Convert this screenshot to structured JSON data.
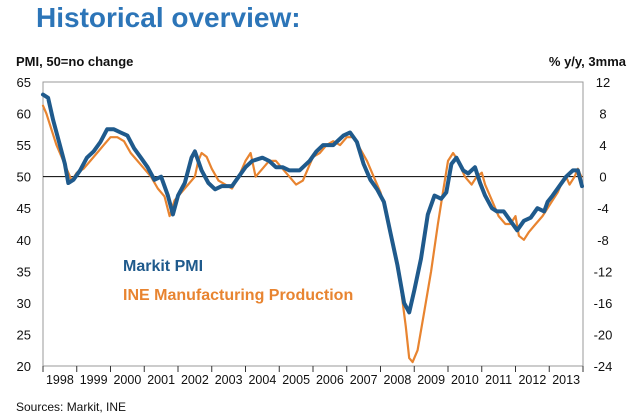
{
  "page": {
    "title": "Historical overview:",
    "source": "Sources: Markit, INE"
  },
  "colors": {
    "pmi": "#1F5A8C",
    "ine": "#E88430",
    "title": "#2C75B8",
    "zero_line": "#000000",
    "frame": "#999999"
  },
  "chart_data": {
    "type": "line",
    "title": "Historical overview:",
    "ylabel_left": "PMI, 50=no change",
    "ylabel_right": "% y/y, 3mma",
    "ylim_left": [
      20,
      65
    ],
    "ylim_right": [
      -24,
      12
    ],
    "yticks_left": [
      20,
      25,
      30,
      35,
      40,
      45,
      50,
      55,
      60,
      65
    ],
    "yticks_right": [
      -24,
      -20,
      -16,
      -12,
      -8,
      -4,
      0,
      4,
      8,
      12
    ],
    "xlim": [
      1998,
      2014
    ],
    "years": [
      "1998",
      "1999",
      "2000",
      "2001",
      "2002",
      "2003",
      "2004",
      "2005",
      "2006",
      "2007",
      "2008",
      "2009",
      "2010",
      "2011",
      "2012",
      "2013"
    ],
    "series": [
      {
        "name": "Markit PMI",
        "axis": "left",
        "points": [
          [
            1998.0,
            63
          ],
          [
            1998.15,
            62.5
          ],
          [
            1998.3,
            59
          ],
          [
            1998.5,
            55
          ],
          [
            1998.65,
            52
          ],
          [
            1998.75,
            49
          ],
          [
            1998.9,
            49.5
          ],
          [
            1999.1,
            51
          ],
          [
            1999.3,
            53
          ],
          [
            1999.5,
            54
          ],
          [
            1999.7,
            55.5
          ],
          [
            1999.9,
            57.5
          ],
          [
            2000.1,
            57.5
          ],
          [
            2000.3,
            57
          ],
          [
            2000.5,
            56.5
          ],
          [
            2000.7,
            54.5
          ],
          [
            2000.9,
            53
          ],
          [
            2001.1,
            51.5
          ],
          [
            2001.3,
            49.5
          ],
          [
            2001.5,
            50
          ],
          [
            2001.7,
            47
          ],
          [
            2001.85,
            44
          ],
          [
            2002.0,
            47
          ],
          [
            2002.2,
            49
          ],
          [
            2002.4,
            53
          ],
          [
            2002.5,
            54
          ],
          [
            2002.7,
            51
          ],
          [
            2002.9,
            49
          ],
          [
            2003.1,
            48
          ],
          [
            2003.3,
            48.5
          ],
          [
            2003.6,
            48.5
          ],
          [
            2003.8,
            50
          ],
          [
            2004.0,
            51.5
          ],
          [
            2004.2,
            52.5
          ],
          [
            2004.5,
            53
          ],
          [
            2004.7,
            52.5
          ],
          [
            2004.9,
            51.5
          ],
          [
            2005.1,
            51.5
          ],
          [
            2005.3,
            51
          ],
          [
            2005.6,
            51
          ],
          [
            2005.9,
            52.5
          ],
          [
            2006.1,
            54
          ],
          [
            2006.3,
            55
          ],
          [
            2006.6,
            55
          ],
          [
            2006.9,
            56.5
          ],
          [
            2007.1,
            57
          ],
          [
            2007.3,
            55.5
          ],
          [
            2007.5,
            52
          ],
          [
            2007.7,
            49.5
          ],
          [
            2007.9,
            48
          ],
          [
            2008.1,
            46
          ],
          [
            2008.3,
            41
          ],
          [
            2008.5,
            36
          ],
          [
            2008.7,
            30
          ],
          [
            2008.85,
            28.5
          ],
          [
            2009.0,
            32
          ],
          [
            2009.2,
            37
          ],
          [
            2009.4,
            44
          ],
          [
            2009.6,
            47
          ],
          [
            2009.8,
            46.5
          ],
          [
            2009.95,
            47.5
          ],
          [
            2010.1,
            52
          ],
          [
            2010.25,
            53
          ],
          [
            2010.45,
            51
          ],
          [
            2010.6,
            50.5
          ],
          [
            2010.8,
            51.5
          ],
          [
            2010.95,
            49
          ],
          [
            2011.1,
            47
          ],
          [
            2011.3,
            45
          ],
          [
            2011.45,
            44.5
          ],
          [
            2011.65,
            44.5
          ],
          [
            2011.85,
            43
          ],
          [
            2012.05,
            41.5
          ],
          [
            2012.25,
            43
          ],
          [
            2012.45,
            43.5
          ],
          [
            2012.65,
            45
          ],
          [
            2012.85,
            44.5
          ],
          [
            2012.95,
            46
          ],
          [
            2013.1,
            47
          ],
          [
            2013.3,
            48.5
          ],
          [
            2013.5,
            50
          ],
          [
            2013.7,
            51
          ],
          [
            2013.85,
            51
          ],
          [
            2013.97,
            48.5
          ]
        ]
      },
      {
        "name": "INE Manufacturing Production",
        "axis": "right",
        "points": [
          [
            1998.0,
            9
          ],
          [
            1998.1,
            8
          ],
          [
            1998.25,
            6
          ],
          [
            1998.4,
            4
          ],
          [
            1998.55,
            2.5
          ],
          [
            1998.7,
            1
          ],
          [
            1998.85,
            -0.5
          ],
          [
            1999.0,
            0.5
          ],
          [
            1999.2,
            1
          ],
          [
            1999.4,
            2
          ],
          [
            1999.6,
            3
          ],
          [
            1999.8,
            4
          ],
          [
            2000.0,
            5
          ],
          [
            2000.2,
            5
          ],
          [
            2000.4,
            4.5
          ],
          [
            2000.6,
            3
          ],
          [
            2000.8,
            2
          ],
          [
            2001.0,
            1
          ],
          [
            2001.2,
            0
          ],
          [
            2001.4,
            -1.5
          ],
          [
            2001.6,
            -2.5
          ],
          [
            2001.75,
            -5
          ],
          [
            2001.9,
            -3
          ],
          [
            2002.1,
            -2
          ],
          [
            2002.3,
            -1
          ],
          [
            2002.5,
            0
          ],
          [
            2002.6,
            2
          ],
          [
            2002.7,
            3
          ],
          [
            2002.85,
            2.5
          ],
          [
            2003.0,
            1
          ],
          [
            2003.2,
            -0.5
          ],
          [
            2003.4,
            -1
          ],
          [
            2003.6,
            -1.5
          ],
          [
            2003.8,
            0
          ],
          [
            2004.0,
            2
          ],
          [
            2004.15,
            3
          ],
          [
            2004.3,
            0
          ],
          [
            2004.5,
            1
          ],
          [
            2004.7,
            2
          ],
          [
            2004.9,
            2
          ],
          [
            2005.1,
            1
          ],
          [
            2005.3,
            0
          ],
          [
            2005.5,
            -1
          ],
          [
            2005.7,
            -0.5
          ],
          [
            2005.85,
            1
          ],
          [
            2006.0,
            2.5
          ],
          [
            2006.2,
            3
          ],
          [
            2006.4,
            4
          ],
          [
            2006.6,
            4.5
          ],
          [
            2006.8,
            4
          ],
          [
            2007.0,
            5
          ],
          [
            2007.2,
            5
          ],
          [
            2007.4,
            3.5
          ],
          [
            2007.6,
            2
          ],
          [
            2007.8,
            0
          ],
          [
            2008.0,
            -2
          ],
          [
            2008.2,
            -5
          ],
          [
            2008.4,
            -9
          ],
          [
            2008.6,
            -14
          ],
          [
            2008.75,
            -19
          ],
          [
            2008.85,
            -23
          ],
          [
            2008.95,
            -23.5
          ],
          [
            2009.1,
            -22
          ],
          [
            2009.3,
            -17
          ],
          [
            2009.5,
            -12
          ],
          [
            2009.7,
            -6
          ],
          [
            2009.85,
            -2
          ],
          [
            2010.0,
            2
          ],
          [
            2010.15,
            3
          ],
          [
            2010.3,
            2
          ],
          [
            2010.5,
            0
          ],
          [
            2010.7,
            -1
          ],
          [
            2010.85,
            0
          ],
          [
            2011.0,
            0.5
          ],
          [
            2011.1,
            -1
          ],
          [
            2011.3,
            -3
          ],
          [
            2011.5,
            -5
          ],
          [
            2011.7,
            -6
          ],
          [
            2011.85,
            -6
          ],
          [
            2012.0,
            -5
          ],
          [
            2012.1,
            -7.5
          ],
          [
            2012.25,
            -8
          ],
          [
            2012.4,
            -7
          ],
          [
            2012.6,
            -6
          ],
          [
            2012.8,
            -5
          ],
          [
            2012.95,
            -4
          ],
          [
            2013.1,
            -3
          ],
          [
            2013.25,
            -2
          ],
          [
            2013.4,
            -0.5
          ],
          [
            2013.5,
            0
          ],
          [
            2013.6,
            -1
          ],
          [
            2013.75,
            0
          ],
          [
            2013.85,
            1
          ],
          [
            2013.95,
            0
          ]
        ]
      }
    ],
    "legend": [
      {
        "label": "Markit PMI",
        "color": "#1F5A8C",
        "placement": "center-left"
      },
      {
        "label": "INE Manufacturing Production",
        "color": "#E88430",
        "placement": "center-left"
      }
    ]
  }
}
